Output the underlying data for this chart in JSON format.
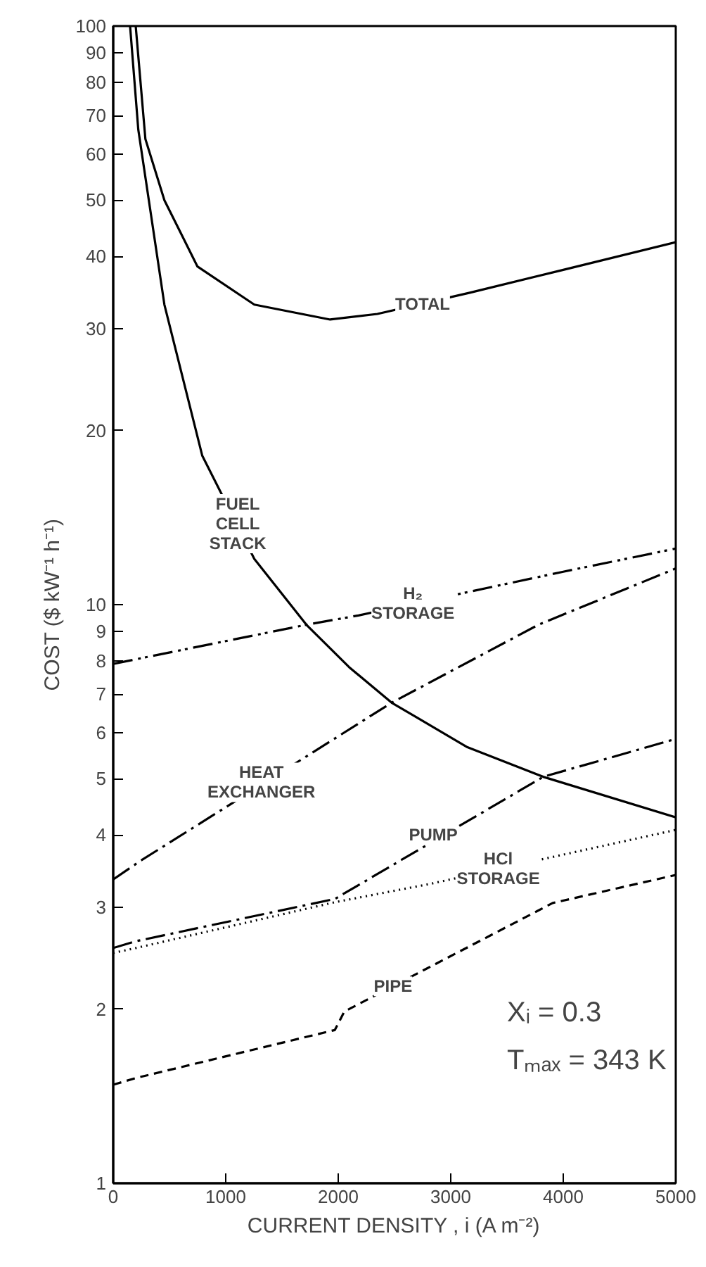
{
  "chart_data": {
    "type": "line",
    "xlabel": "CURRENT DENSITY , i (A m⁻²)",
    "ylabel": "COST ($ kW⁻¹ h⁻¹)",
    "log": "y",
    "grid": false,
    "marker": "none",
    "xlim": [
      0,
      5000
    ],
    "xticks": [
      0,
      1000,
      2000,
      3000,
      4000,
      5000
    ],
    "ylim": [
      1,
      100
    ],
    "yticks": [
      1,
      2,
      3,
      4,
      5,
      6,
      7,
      8,
      9,
      10,
      20,
      30,
      40,
      50,
      60,
      70,
      80,
      90,
      100
    ],
    "series": [
      {
        "color": "#000000",
        "line_style": "solid",
        "x": [
          200,
          286,
          455,
          749,
          1254,
          1928,
          2348,
          3169,
          4000,
          5000
        ],
        "values": [
          100,
          63.8,
          50.0,
          38.4,
          33.0,
          31.1,
          31.8,
          34.6,
          37.9,
          42.3
        ]
      },
      {
        "color": "#000000",
        "line_style": "solid",
        "x": [
          150,
          223,
          455,
          791,
          1254,
          1717,
          2096,
          2475,
          3148,
          3822,
          5000
        ],
        "values": [
          100,
          66.2,
          33.0,
          18.1,
          12.0,
          9.23,
          7.8,
          6.77,
          5.67,
          5.04,
          4.29
        ]
      },
      {
        "color": "#000000",
        "line_style": "dashdotdot",
        "x": [
          0,
          1717,
          2180,
          4000,
          5000
        ],
        "values": [
          7.9,
          9.23,
          9.58,
          11.4,
          12.5
        ]
      },
      {
        "color": "#000000",
        "line_style": "dashdot",
        "x": [
          0,
          244,
          749,
          2475,
          3779,
          5000
        ],
        "values": [
          3.35,
          3.61,
          4.16,
          6.77,
          9.23,
          11.55
        ]
      },
      {
        "color": "#000000",
        "line_style": "dashdot",
        "x": [
          0,
          202,
          1970,
          3822,
          5000
        ],
        "values": [
          2.55,
          2.62,
          3.1,
          5.04,
          5.86
        ]
      },
      {
        "color": "#000000",
        "line_style": "dotted",
        "x": [
          0,
          202,
          1970,
          2812,
          5000
        ],
        "values": [
          2.5,
          2.55,
          3.06,
          3.29,
          4.08
        ]
      },
      {
        "color": "#000000",
        "line_style": "dashed",
        "x": [
          0,
          202,
          1970,
          2054,
          2769,
          3906,
          5000
        ],
        "values": [
          1.48,
          1.52,
          1.84,
          1.98,
          2.34,
          3.05,
          3.41
        ]
      }
    ],
    "annotations": [
      {
        "text": "TOTAL",
        "x": 2750,
        "y": 33.1
      },
      {
        "text": "FUEL\nCELL\nSTACK",
        "x": 1107,
        "y": 13.8
      },
      {
        "text": "H₂\nSTORAGE",
        "x": 2664,
        "y": 10.06
      },
      {
        "text": "HEAT\nEXCHANGER",
        "x": 1317,
        "y": 4.93
      },
      {
        "text": "PUMP",
        "x": 2845,
        "y": 4.0
      },
      {
        "text": "HCl\nSTORAGE",
        "x": 3422,
        "y": 3.5
      },
      {
        "text": "PIPE",
        "x": 2487,
        "y": 2.19
      },
      "Xᵢ   = 0.3",
      "Tₘₐₓ = 343 K"
    ]
  }
}
